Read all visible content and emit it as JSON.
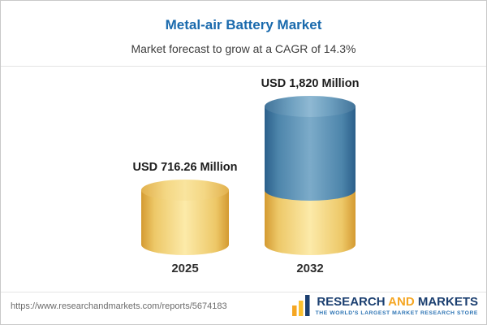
{
  "header": {
    "title": "Metal-air Battery Market",
    "subtitle": "Market forecast to grow at a CAGR of 14.3%"
  },
  "chart_data": {
    "type": "bar",
    "categories": [
      "2025",
      "2032"
    ],
    "values": [
      716.26,
      1820
    ],
    "value_labels": [
      "USD 716.26 Million",
      "USD 1,820 Million"
    ],
    "units": "USD Million",
    "cagr": "14.3%",
    "title": "Metal-air Battery Market",
    "xlabel": "",
    "ylabel": "",
    "ylim": [
      0,
      1820
    ],
    "grid": false,
    "legend": false,
    "bar_style": "3d-cylinder",
    "colors": {
      "base_segment": "#f0c75e",
      "growth_segment": "#4680a8"
    }
  },
  "footer": {
    "url": "https://www.researchandmarkets.com/reports/5674183",
    "logo": {
      "word1": "RESEARCH",
      "word2": "AND",
      "word3": "MARKETS",
      "tagline": "THE WORLD'S LARGEST MARKET RESEARCH STORE"
    }
  },
  "colors": {
    "title_blue": "#1a6aad",
    "logo_navy": "#1b3f70",
    "logo_orange": "#f5a623",
    "tagline_blue": "#2d74b4"
  }
}
